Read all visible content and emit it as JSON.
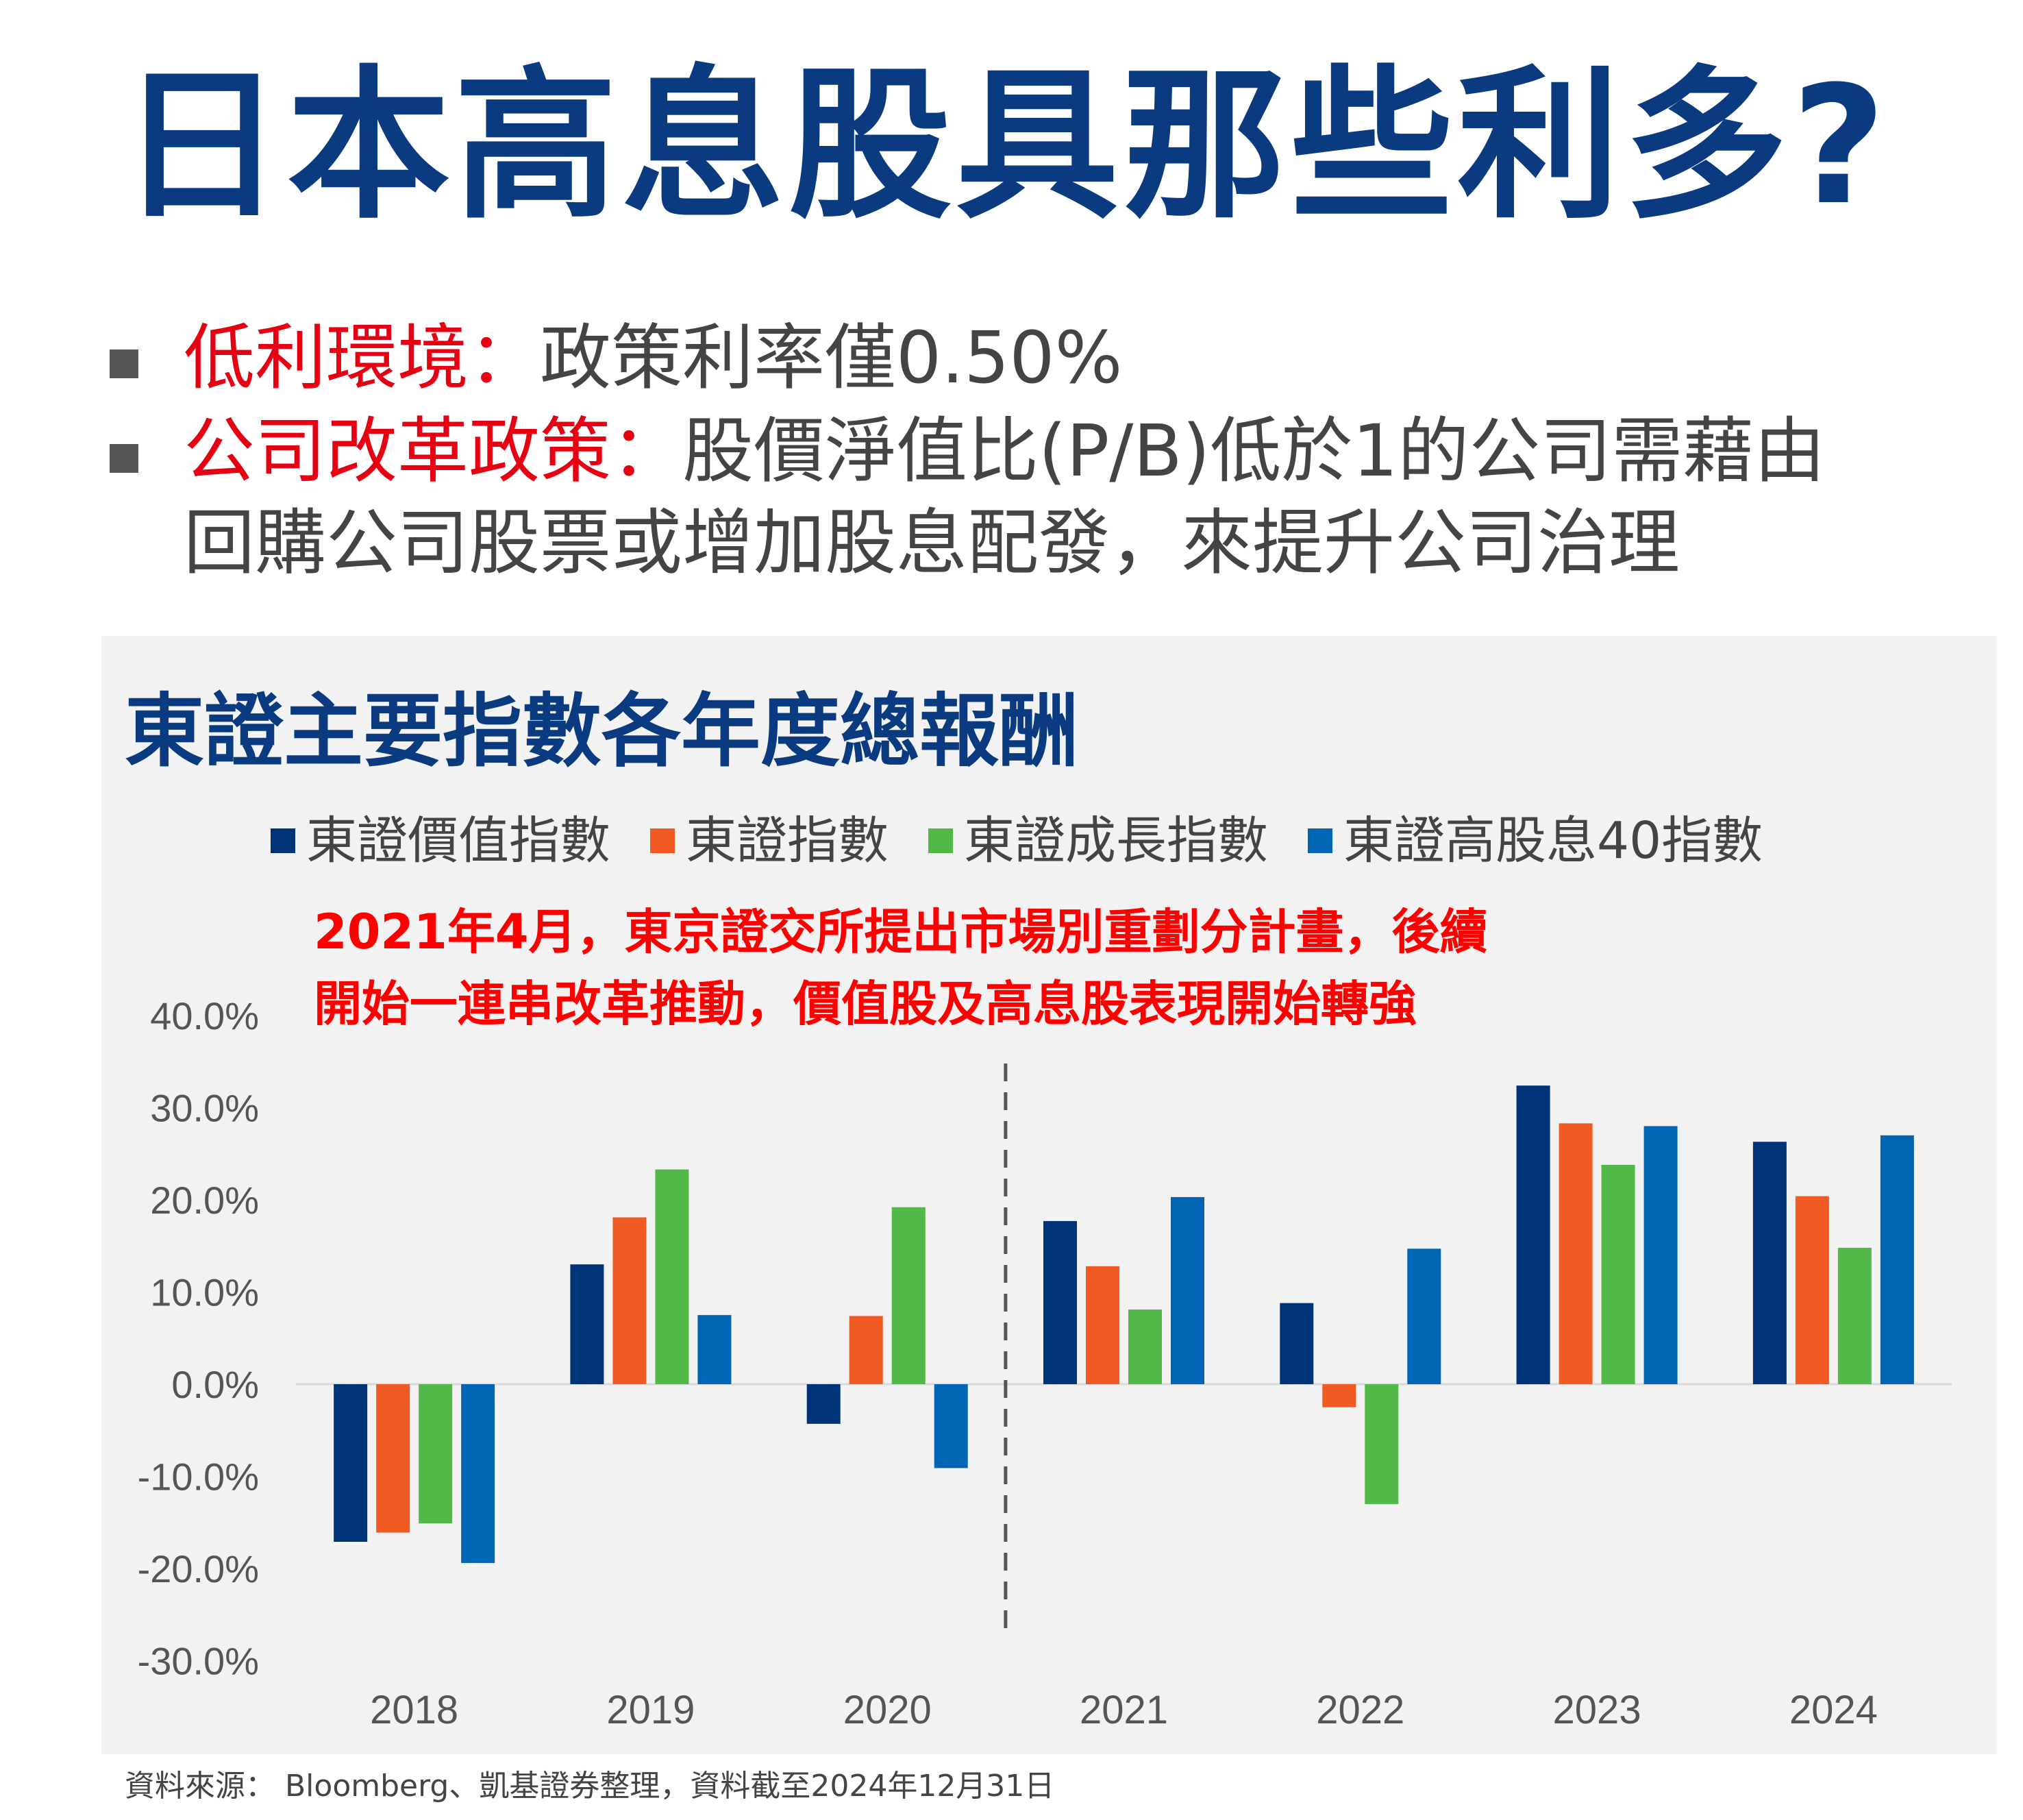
{
  "title": "日本高息股具那些利多?",
  "bullets": [
    {
      "highlight": "低利環境：",
      "text": "政策利率僅0.50%"
    },
    {
      "highlight": "公司改革政策：",
      "text": "股價淨值比(P/B)低於1的公司需藉由",
      "text2": "回購公司股票或增加股息配發，來提升公司治理"
    }
  ],
  "annotation": {
    "line1": "2021年4月，東京證交所提出市場別重劃分計畫，後續",
    "line2": "開始一連串改革推動，價值股及高息股表現開始轉強"
  },
  "source": "資料來源： Bloomberg、凱基證券整理，資料截至2024年12月31日",
  "colors": {
    "title": "#0A3A80",
    "highlight": "#E60012",
    "annotation": "#FF0000"
  },
  "chart_data": {
    "type": "bar",
    "title": "東證主要指數各年度總報酬",
    "xlabel": "",
    "ylabel": "",
    "categories": [
      "2018",
      "2019",
      "2020",
      "2021",
      "2022",
      "2023",
      "2024"
    ],
    "ylim": [
      -30,
      40
    ],
    "yticks": [
      "40.0%",
      "30.0%",
      "20.0%",
      "10.0%",
      "0.0%",
      "-10.0%",
      "-20.0%",
      "-30.0%"
    ],
    "grid": false,
    "legend_position": "top",
    "reference_line": {
      "between": [
        "2020",
        "2021"
      ],
      "style": "dashed"
    },
    "series": [
      {
        "name": "東證價值指數",
        "color": "#003478",
        "values": [
          -17.1,
          13.0,
          -4.3,
          17.7,
          8.8,
          32.4,
          26.3
        ]
      },
      {
        "name": "東證指數",
        "color": "#F15A22",
        "values": [
          -16.1,
          18.1,
          7.4,
          12.8,
          -2.5,
          28.3,
          20.4
        ]
      },
      {
        "name": "東證成長指數",
        "color": "#52B848",
        "values": [
          -15.1,
          23.3,
          19.2,
          8.1,
          -13.0,
          23.8,
          14.8
        ]
      },
      {
        "name": "東證高股息40指數",
        "color": "#0065B2",
        "values": [
          -19.4,
          7.5,
          -9.1,
          20.3,
          14.7,
          28.0,
          27.0
        ]
      }
    ]
  }
}
